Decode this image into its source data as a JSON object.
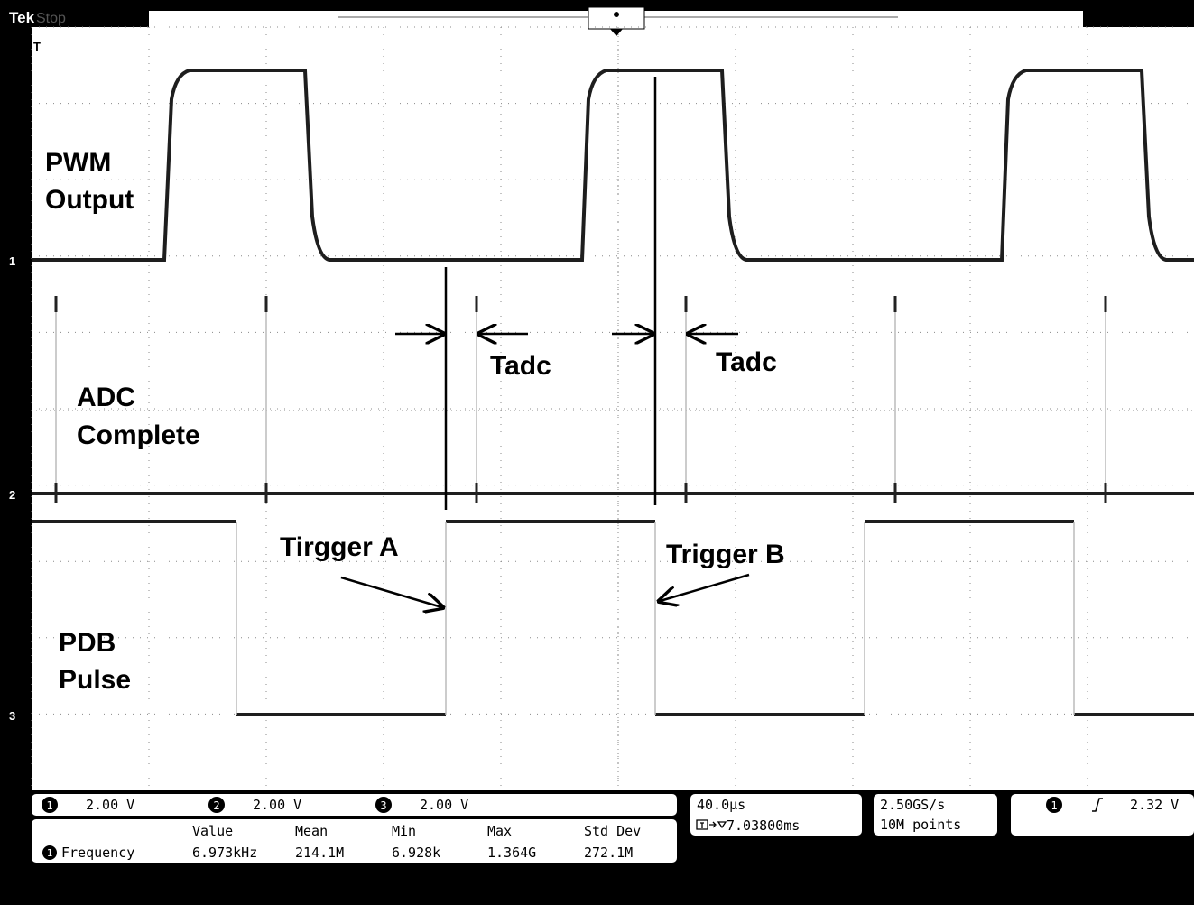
{
  "header": {
    "brand": "Tek",
    "status": "Stop",
    "trigger_marker": "T"
  },
  "channels": {
    "markers": [
      "1",
      "2",
      "3"
    ]
  },
  "labels": {
    "pwm": [
      "PWM",
      "Output"
    ],
    "adc": [
      "ADC",
      "Complete"
    ],
    "pdb": [
      "PDB",
      "Pulse"
    ],
    "tadc_a": "Tadc",
    "tadc_b": "Tadc",
    "trigger_a": "Tirgger A",
    "trigger_b": "Trigger B"
  },
  "scales": [
    {
      "channel": "1",
      "value": "2.00 V"
    },
    {
      "channel": "2",
      "value": "2.00 V"
    },
    {
      "channel": "3",
      "value": "2.00 V"
    }
  ],
  "measurements": {
    "headers": [
      "Value",
      "Mean",
      "Min",
      "Max",
      "Std Dev"
    ],
    "rows": [
      {
        "channel": "1",
        "name": "Frequency",
        "cells": [
          "6.973kHz",
          "214.1M",
          "6.928k",
          "1.364G",
          "272.1M"
        ]
      }
    ]
  },
  "horizontal": {
    "scale": "40.0µs",
    "delay": "7.03800ms"
  },
  "acquisition": {
    "rate": "2.50GS/s",
    "points": "10M points"
  },
  "trigger": {
    "channel": "1",
    "level": "2.32 V"
  }
}
